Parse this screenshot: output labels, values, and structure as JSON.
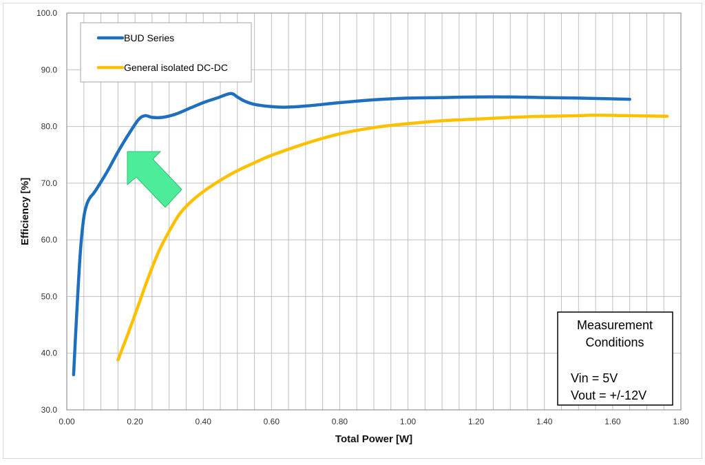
{
  "chart_data": {
    "type": "line",
    "xlabel": "Total Power [W]",
    "ylabel": "Efficiency [%]",
    "xlim": [
      0,
      1.8
    ],
    "ylim": [
      30,
      100
    ],
    "x_ticks": [
      "0.00",
      "0.20",
      "0.40",
      "0.60",
      "0.80",
      "1.00",
      "1.20",
      "1.40",
      "1.60",
      "1.80"
    ],
    "y_ticks": [
      "30.0",
      "40.0",
      "50.0",
      "60.0",
      "70.0",
      "80.0",
      "90.0",
      "100.0"
    ],
    "grid": true,
    "legend_position": "top-left",
    "series": [
      {
        "name": "BUD Series",
        "color": "#1f6fbf",
        "x": [
          0.02,
          0.03,
          0.04,
          0.05,
          0.06,
          0.07,
          0.08,
          0.1,
          0.12,
          0.15,
          0.18,
          0.21,
          0.23,
          0.25,
          0.28,
          0.32,
          0.36,
          0.4,
          0.44,
          0.48,
          0.5,
          0.52,
          0.55,
          0.6,
          0.64,
          0.7,
          0.8,
          0.9,
          1.0,
          1.1,
          1.2,
          1.3,
          1.4,
          1.5,
          1.65
        ],
        "y": [
          36.2,
          48,
          58,
          64,
          66.5,
          67.6,
          68.3,
          70.2,
          72.2,
          75.5,
          78.5,
          81.2,
          81.9,
          81.6,
          81.6,
          82.2,
          83.2,
          84.2,
          85.0,
          85.8,
          85.2,
          84.5,
          83.9,
          83.5,
          83.4,
          83.6,
          84.2,
          84.7,
          85.0,
          85.1,
          85.2,
          85.2,
          85.1,
          85.0,
          84.8
        ]
      },
      {
        "name": "General isolated DC-DC",
        "color": "#ffc000",
        "x": [
          0.15,
          0.18,
          0.21,
          0.24,
          0.27,
          0.3,
          0.33,
          0.36,
          0.4,
          0.45,
          0.5,
          0.55,
          0.6,
          0.7,
          0.8,
          0.9,
          1.0,
          1.1,
          1.2,
          1.3,
          1.4,
          1.5,
          1.55,
          1.65,
          1.76
        ],
        "y": [
          38.8,
          43.5,
          48.5,
          53.5,
          58.0,
          61.5,
          64.5,
          66.5,
          68.5,
          70.5,
          72.2,
          73.6,
          74.9,
          77.0,
          78.7,
          79.8,
          80.5,
          81.0,
          81.3,
          81.6,
          81.8,
          81.9,
          82.0,
          81.9,
          81.8
        ]
      }
    ],
    "annotation_box": {
      "lines": [
        "Measurement",
        "Conditions",
        "",
        "Vin = 5V",
        "Vout = +/-12V"
      ]
    },
    "arrow_color": "#4dec9b"
  }
}
